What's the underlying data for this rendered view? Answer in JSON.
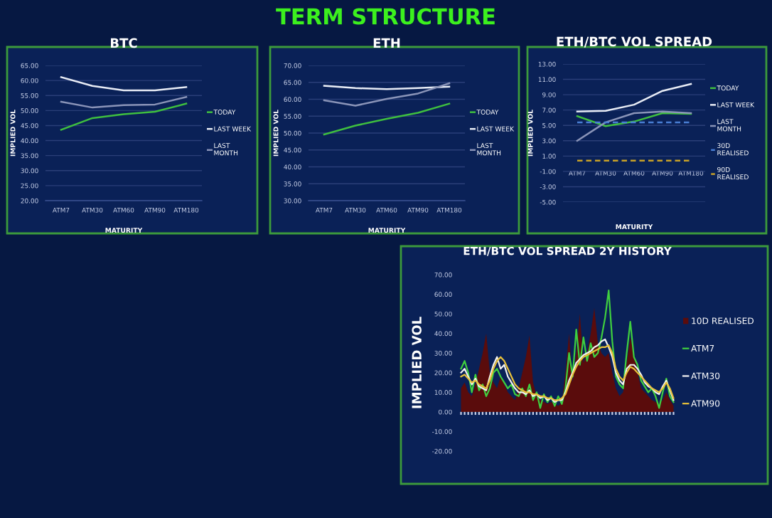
{
  "chart_data": [
    {
      "type": "line",
      "title": "BTC",
      "xlabel": "MATURITY",
      "ylabel": "IMPLIED VOL",
      "annotations": [
        "TERM STRUCTURE"
      ],
      "categories": [
        "ATM7",
        "ATM30",
        "ATM60",
        "ATM90",
        "ATM180"
      ],
      "series": [
        {
          "name": "TODAY",
          "color": "#3fbf3f",
          "values": [
            43.6,
            47.5,
            48.8,
            49.6,
            52.3
          ]
        },
        {
          "name": "LAST WEEK",
          "color": "#e8ecf5",
          "values": [
            61.1,
            58.2,
            56.7,
            56.7,
            57.8
          ]
        },
        {
          "name": "LAST MONTH",
          "color": "#8a94b8",
          "values": [
            52.9,
            51.0,
            51.8,
            52.0,
            54.5
          ]
        }
      ],
      "ylim": [
        20,
        65
      ],
      "yticks": [
        {
          "value": 20,
          "label": "20.00"
        },
        {
          "value": 25,
          "label": "25.00"
        },
        {
          "value": 30,
          "label": "30.00"
        },
        {
          "value": 35,
          "label": "35.00"
        },
        {
          "value": 40,
          "label": "40.00"
        },
        {
          "value": 45,
          "label": "45.00"
        },
        {
          "value": 50,
          "label": "50.00"
        },
        {
          "value": 55,
          "label": "55.00"
        },
        {
          "value": 60,
          "label": "60.00"
        },
        {
          "value": 65,
          "label": "65.00"
        }
      ],
      "grid": "y",
      "legend": "right"
    },
    {
      "type": "line",
      "title": "ETH",
      "xlabel": "MATURITY",
      "ylabel": "IMPLIED VOL",
      "categories": [
        "ATM7",
        "ATM30",
        "ATM60",
        "ATM90",
        "ATM180"
      ],
      "series": [
        {
          "name": "TODAY",
          "color": "#3fbf3f",
          "values": [
            49.6,
            52.2,
            54.2,
            56.0,
            58.7
          ]
        },
        {
          "name": "LAST WEEK",
          "color": "#e8ecf5",
          "values": [
            64.0,
            63.3,
            63.0,
            63.3,
            63.7
          ]
        },
        {
          "name": "LAST MONTH",
          "color": "#8a94b8",
          "values": [
            59.7,
            58.1,
            60.1,
            61.7,
            64.7
          ]
        }
      ],
      "ylim": [
        30,
        70
      ],
      "yticks": [
        {
          "value": 30,
          "label": "30.00"
        },
        {
          "value": 35,
          "label": "35.00"
        },
        {
          "value": 40,
          "label": "40.00"
        },
        {
          "value": 45,
          "label": "45.00"
        },
        {
          "value": 50,
          "label": "50.00"
        },
        {
          "value": 55,
          "label": "55.00"
        },
        {
          "value": 60,
          "label": "60.00"
        },
        {
          "value": 65,
          "label": "65.00"
        },
        {
          "value": 70,
          "label": "70.00"
        }
      ],
      "grid": "y",
      "legend": "right"
    },
    {
      "type": "line",
      "title": "ETH/BTC VOL SPREAD",
      "xlabel": "MATURITY",
      "ylabel": "IMPLIED VOL",
      "categories": [
        "ATM7",
        "ATM30",
        "ATM60",
        "ATM90",
        "ATM180"
      ],
      "series": [
        {
          "name": "TODAY",
          "color": "#3fbf3f",
          "values": [
            6.2,
            4.9,
            5.5,
            6.6,
            6.5
          ]
        },
        {
          "name": "LAST WEEK",
          "color": "#e8ecf5",
          "values": [
            6.8,
            6.9,
            7.7,
            9.5,
            10.4
          ]
        },
        {
          "name": "LAST MONTH",
          "color": "#8a94b8",
          "values": [
            3.0,
            5.4,
            6.6,
            6.8,
            6.6
          ]
        },
        {
          "name": "30D REALISED",
          "color": "#4a7fd4",
          "line_style": "dashed",
          "values": [
            5.4,
            5.4,
            5.4,
            5.4,
            5.4
          ]
        },
        {
          "name": "90D REALISED",
          "color": "#c9a227",
          "line_style": "dashed",
          "values": [
            0.4,
            0.4,
            0.4,
            0.4,
            0.4
          ]
        }
      ],
      "ylim": [
        -5,
        13
      ],
      "yticks": [
        {
          "value": -5,
          "label": "-5.00"
        },
        {
          "value": -3,
          "label": "-3.00"
        },
        {
          "value": -1,
          "label": "-1.00"
        },
        {
          "value": 1,
          "label": "1.00"
        },
        {
          "value": 3,
          "label": "3.00"
        },
        {
          "value": 5,
          "label": "5.00"
        },
        {
          "value": 7,
          "label": "7.00"
        },
        {
          "value": 9,
          "label": "9.00"
        },
        {
          "value": 11,
          "label": "11.00"
        },
        {
          "value": 13,
          "label": "13.00"
        }
      ],
      "grid": "y",
      "legend": "right"
    },
    {
      "type": "line",
      "title": "ETH/BTC VOL SPREAD 2Y HISTORY",
      "ylabel": "IMPLIED VOL",
      "categories": [
        null,
        null,
        null,
        null,
        null,
        null,
        null,
        null,
        null,
        null,
        null,
        null,
        null,
        null,
        null,
        null,
        null,
        null,
        null,
        null,
        null,
        null,
        null,
        null,
        null,
        null,
        null,
        null,
        null,
        null,
        null,
        null,
        null,
        null,
        null,
        null,
        null,
        null,
        null,
        null,
        null,
        null,
        null,
        null,
        null,
        null,
        null,
        null,
        null,
        null,
        null,
        null,
        null,
        null,
        null,
        null,
        null,
        null,
        null,
        null
      ],
      "series": [
        {
          "name": "10D REALISED",
          "type": "area",
          "color": "#5a0c0c",
          "values": [
            12,
            15,
            10,
            8,
            14,
            22,
            30,
            40,
            20,
            15,
            12,
            18,
            14,
            10,
            8,
            6,
            12,
            20,
            28,
            39,
            15,
            8,
            6,
            5,
            4,
            5,
            4,
            3,
            5,
            20,
            40,
            15,
            30,
            50,
            25,
            30,
            40,
            53,
            35,
            30,
            28,
            30,
            20,
            12,
            8,
            10,
            25,
            38,
            30,
            20,
            12,
            10,
            8,
            6,
            5,
            4,
            6,
            10,
            6,
            3
          ]
        },
        {
          "name": "ATM7",
          "color": "#3fcf3f",
          "values": [
            22,
            26,
            20,
            10,
            19,
            11,
            14,
            8,
            12,
            20,
            22,
            18,
            15,
            12,
            14,
            9,
            8,
            12,
            8,
            14,
            6,
            10,
            2,
            9,
            5,
            8,
            3,
            8,
            4,
            12,
            30,
            18,
            42,
            24,
            38,
            26,
            35,
            28,
            30,
            38,
            48,
            62,
            36,
            18,
            14,
            12,
            30,
            46,
            28,
            24,
            16,
            13,
            10,
            12,
            8,
            2,
            10,
            17,
            8,
            5
          ]
        },
        {
          "name": "ATM30",
          "color": "#f2f2f2",
          "values": [
            20,
            22,
            18,
            14,
            17,
            13,
            12,
            11,
            18,
            24,
            28,
            22,
            24,
            18,
            15,
            12,
            10,
            10,
            9,
            11,
            8,
            9,
            7,
            8,
            6,
            7,
            5,
            6,
            6,
            10,
            16,
            20,
            25,
            27,
            29,
            30,
            31,
            33,
            34,
            36,
            37,
            33,
            28,
            20,
            16,
            14,
            22,
            24,
            24,
            22,
            19,
            15,
            13,
            12,
            10,
            9,
            13,
            16,
            11,
            6
          ]
        },
        {
          "name": "ATM90",
          "color": "#e8c13a",
          "values": [
            18,
            19,
            17,
            15,
            16,
            14,
            13,
            12,
            16,
            22,
            26,
            28,
            26,
            22,
            18,
            14,
            12,
            11,
            10,
            10,
            9,
            9,
            8,
            8,
            7,
            7,
            6,
            6,
            7,
            9,
            14,
            19,
            23,
            26,
            28,
            29,
            30,
            31,
            32,
            33,
            33,
            34,
            30,
            22,
            18,
            16,
            20,
            23,
            22,
            20,
            18,
            16,
            14,
            12,
            11,
            10,
            12,
            15,
            12,
            7
          ]
        }
      ],
      "ylim": [
        -20,
        70
      ],
      "yticks": [
        {
          "value": -20,
          "label": "-20.00"
        },
        {
          "value": -10,
          "label": "-10.00"
        },
        {
          "value": 0,
          "label": "0.00"
        },
        {
          "value": 10,
          "label": "10.00"
        },
        {
          "value": 20,
          "label": "20.00"
        },
        {
          "value": 30,
          "label": "30.00"
        },
        {
          "value": 40,
          "label": "40.00"
        },
        {
          "value": 50,
          "label": "50.00"
        },
        {
          "value": 60,
          "label": "60.00"
        },
        {
          "value": 70,
          "label": "70.00"
        }
      ],
      "grid": false,
      "legend": "right"
    }
  ]
}
